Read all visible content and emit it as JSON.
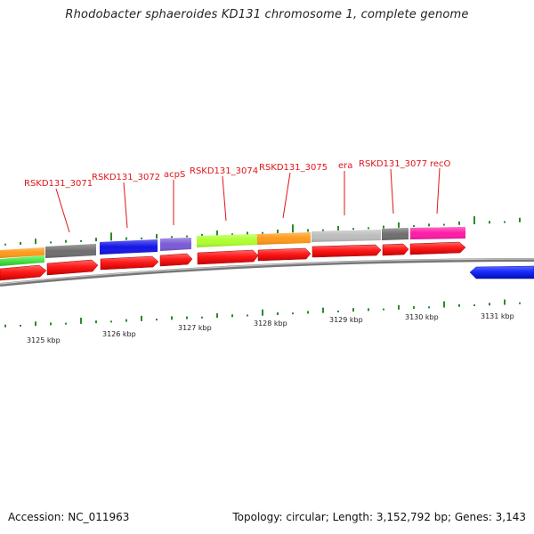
{
  "title": "Rhodobacter sphaeroides KD131 chromosome 1, complete genome",
  "footer": {
    "accession": "Accession: NC_011963",
    "topology": "Topology: circular; Length: 3,152,792 bp; Genes: 3,143"
  },
  "colors": {
    "label": "#e0141b",
    "forward_gene": "#ff1a1a",
    "reverse_gene": "#1a2bff",
    "gc_tick": "#2a8a2a",
    "backbone": "#888888"
  },
  "gene_labels": [
    "RSKD131_3071",
    "RSKD131_3072",
    "acpS",
    "RSKD131_3074",
    "RSKD131_3075",
    "era",
    "RSKD131_3077",
    "recO"
  ],
  "cog_track": [
    {
      "name": "cog-block-1",
      "color": "#ff9a1a"
    },
    {
      "name": "cog-block-2",
      "color": "#6e6e6e"
    },
    {
      "name": "cog-block-3",
      "color": "#1414e6"
    },
    {
      "name": "cog-block-4",
      "color": "#7a5ad6"
    },
    {
      "name": "cog-block-5",
      "color": "#adff2f"
    },
    {
      "name": "cog-block-6",
      "color": "#ff9a1a"
    },
    {
      "name": "cog-block-7",
      "color": "#bdbdbd"
    },
    {
      "name": "cog-block-8",
      "color": "#6e6e6e"
    },
    {
      "name": "cog-block-9",
      "color": "#ff1aa8"
    }
  ],
  "scale_ticks": [
    "3125 kbp",
    "3126 kbp",
    "3127 kbp",
    "3128 kbp",
    "3129 kbp",
    "3130 kbp",
    "3131 kbp"
  ]
}
